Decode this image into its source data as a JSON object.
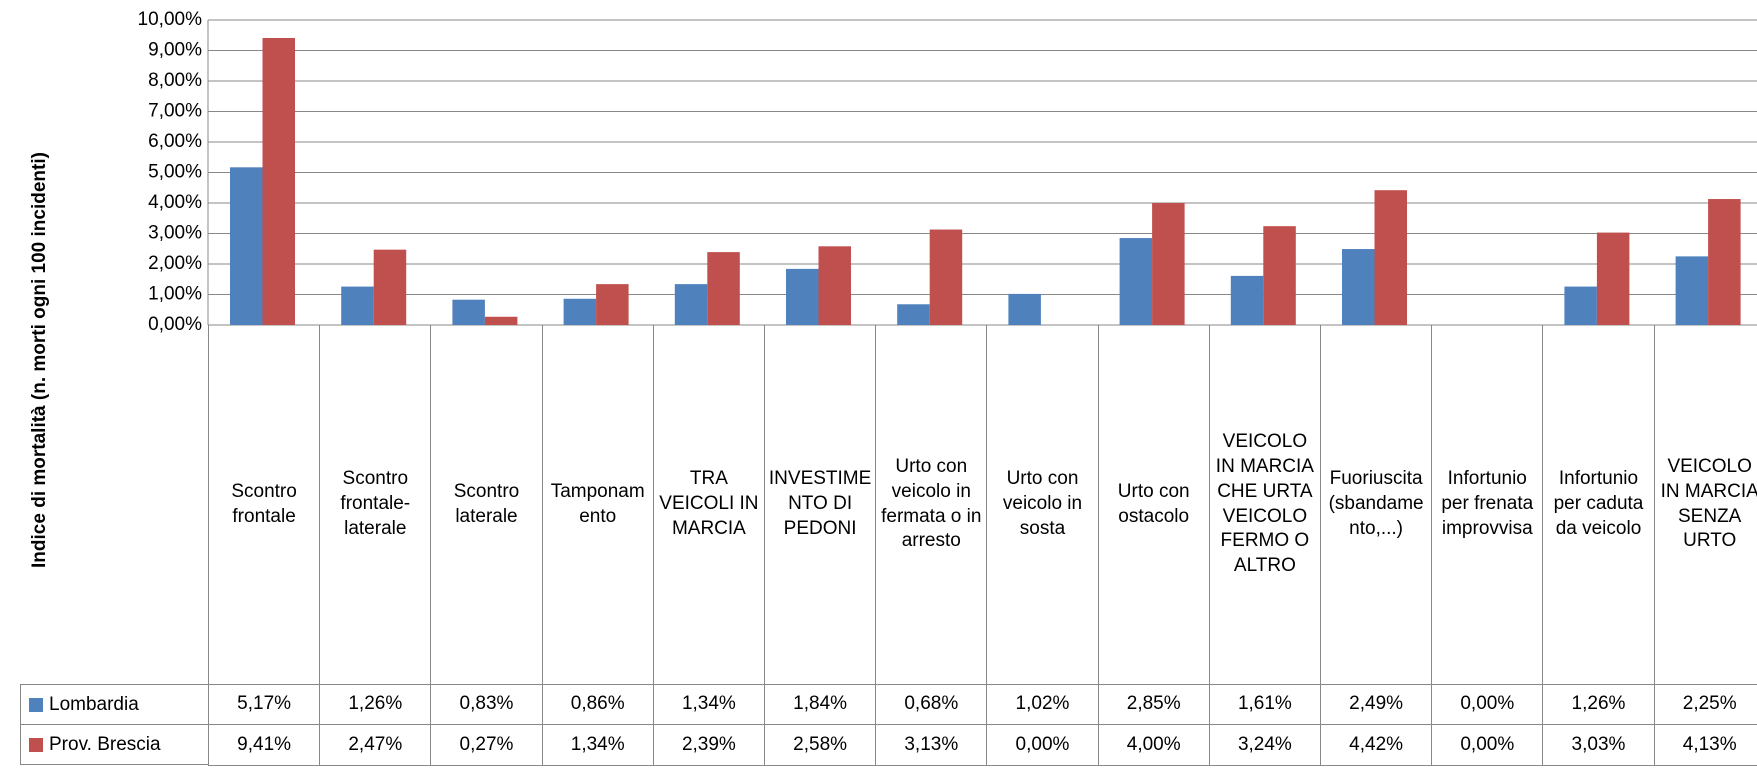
{
  "chart_data": {
    "type": "bar",
    "y_axis_label": "Indice di mortalità (n. morti ogni 100 incidenti)",
    "categories": [
      "Scontro frontale",
      "Scontro frontale-laterale",
      "Scontro laterale",
      "Tamponamento",
      "TRA VEICOLI IN MARCIA",
      "INVESTIMENTO DI PEDONI",
      "Urto con veicolo in fermata o in arresto",
      "Urto con veicolo in sosta",
      "Urto con ostacolo",
      "VEICOLO IN MARCIA CHE URTA VEICOLO FERMO O ALTRO",
      "Fuoriuscita (sbandamento,...)",
      "Infortunio per frenata improvvisa",
      "Infortunio per caduta da veicolo",
      "VEICOLO IN MARCIA SENZA URTO"
    ],
    "series": [
      {
        "name": "Lombardia",
        "color": "#4f81bd",
        "values": [
          5.17,
          1.26,
          0.83,
          0.86,
          1.34,
          1.84,
          0.68,
          1.02,
          2.85,
          1.61,
          2.49,
          0.0,
          1.26,
          2.25
        ],
        "value_labels": [
          "5,17%",
          "1,26%",
          "0,83%",
          "0,86%",
          "1,34%",
          "1,84%",
          "0,68%",
          "1,02%",
          "2,85%",
          "1,61%",
          "2,49%",
          "0,00%",
          "1,26%",
          "2,25%"
        ]
      },
      {
        "name": "Prov. Brescia",
        "color": "#c0504d",
        "values": [
          9.41,
          2.47,
          0.27,
          1.34,
          2.39,
          2.58,
          3.13,
          0.0,
          4.0,
          3.24,
          4.42,
          0.0,
          3.03,
          4.13
        ],
        "value_labels": [
          "9,41%",
          "2,47%",
          "0,27%",
          "1,34%",
          "2,39%",
          "2,58%",
          "3,13%",
          "0,00%",
          "4,00%",
          "3,24%",
          "4,42%",
          "0,00%",
          "3,03%",
          "4,13%"
        ]
      }
    ],
    "ylim": [
      0,
      10
    ],
    "yticks": [
      {
        "value": 0,
        "label": "0,00%"
      },
      {
        "value": 1,
        "label": "1,00%"
      },
      {
        "value": 2,
        "label": "2,00%"
      },
      {
        "value": 3,
        "label": "3,00%"
      },
      {
        "value": 4,
        "label": "4,00%"
      },
      {
        "value": 5,
        "label": "5,00%"
      },
      {
        "value": 6,
        "label": "6,00%"
      },
      {
        "value": 7,
        "label": "7,00%"
      },
      {
        "value": 8,
        "label": "8,00%"
      },
      {
        "value": 9,
        "label": "9,00%"
      },
      {
        "value": 10,
        "label": "10,00%"
      }
    ],
    "grid": true
  }
}
